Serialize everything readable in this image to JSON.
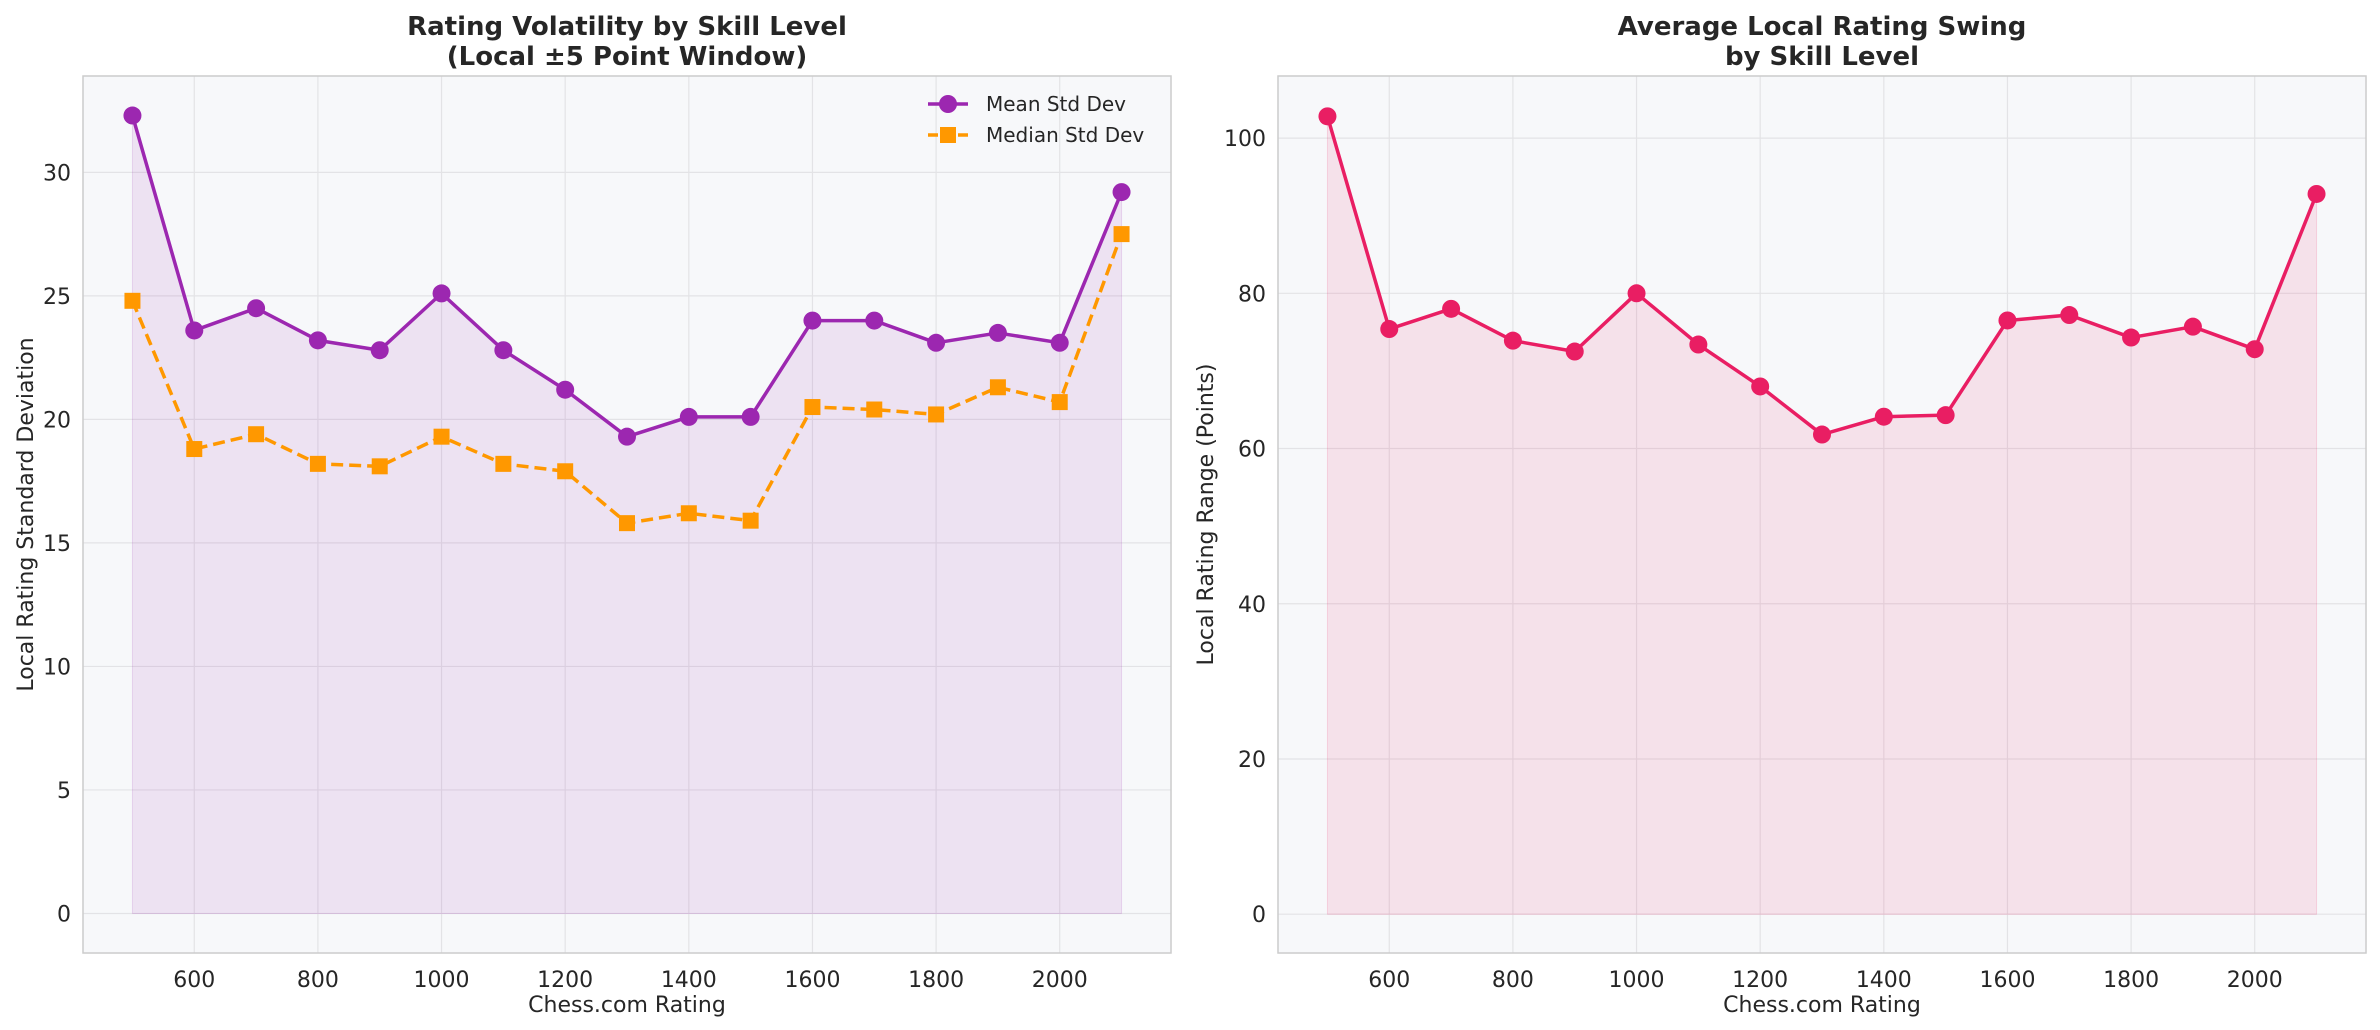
{
  "chart_data": [
    {
      "type": "line",
      "title_line1": "Rating Volatility by Skill Level",
      "title_line2": "(Local ±5 Point Window)",
      "xlabel": "Chess.com Rating",
      "ylabel": "Local Rating Standard Deviation",
      "xlim": [
        420,
        2180
      ],
      "ylim": [
        -1.6,
        33.9
      ],
      "xticks": [
        600,
        800,
        1000,
        1200,
        1400,
        1600,
        1800,
        2000
      ],
      "yticks": [
        0,
        5,
        10,
        15,
        20,
        25,
        30
      ],
      "grid": true,
      "legend_position": "top-right",
      "x": [
        500,
        600,
        700,
        800,
        900,
        1000,
        1100,
        1200,
        1300,
        1400,
        1500,
        1600,
        1700,
        1800,
        1900,
        2000,
        2100
      ],
      "series": [
        {
          "name": "Mean Std Dev",
          "values": [
            32.3,
            23.6,
            24.5,
            23.2,
            22.8,
            25.1,
            22.8,
            21.2,
            19.3,
            20.1,
            20.1,
            24.0,
            24.0,
            23.1,
            23.5,
            23.1,
            29.2
          ],
          "color": "#9c27b0",
          "marker": "circle",
          "line_style": "solid",
          "fill_area": true
        },
        {
          "name": "Median Std Dev",
          "values": [
            24.8,
            18.8,
            19.4,
            18.2,
            18.1,
            19.3,
            18.2,
            17.9,
            15.8,
            16.2,
            15.9,
            20.5,
            20.4,
            20.2,
            21.3,
            20.7,
            27.5
          ],
          "color": "#ff9800",
          "marker": "square",
          "line_style": "dashed",
          "fill_area": false
        }
      ]
    },
    {
      "type": "line",
      "title_line1": "Average Local Rating Swing",
      "title_line2": "by Skill Level",
      "xlabel": "Chess.com Rating",
      "ylabel": "Local Rating Range (Points)",
      "xlim": [
        420,
        2180
      ],
      "ylim": [
        -5,
        108
      ],
      "xticks": [
        600,
        800,
        1000,
        1200,
        1400,
        1600,
        1800,
        2000
      ],
      "yticks": [
        0,
        20,
        40,
        60,
        80,
        100
      ],
      "grid": true,
      "x": [
        500,
        600,
        700,
        800,
        900,
        1000,
        1100,
        1200,
        1300,
        1400,
        1500,
        1600,
        1700,
        1800,
        1900,
        2000,
        2100
      ],
      "series": [
        {
          "values": [
            102.8,
            75.4,
            78.0,
            73.9,
            72.5,
            80.0,
            73.4,
            68.0,
            61.8,
            64.1,
            64.3,
            76.5,
            77.2,
            74.3,
            75.7,
            72.8,
            92.8
          ],
          "color": "#e91e63",
          "marker": "circle",
          "line_style": "solid",
          "fill_area": true
        }
      ]
    }
  ]
}
